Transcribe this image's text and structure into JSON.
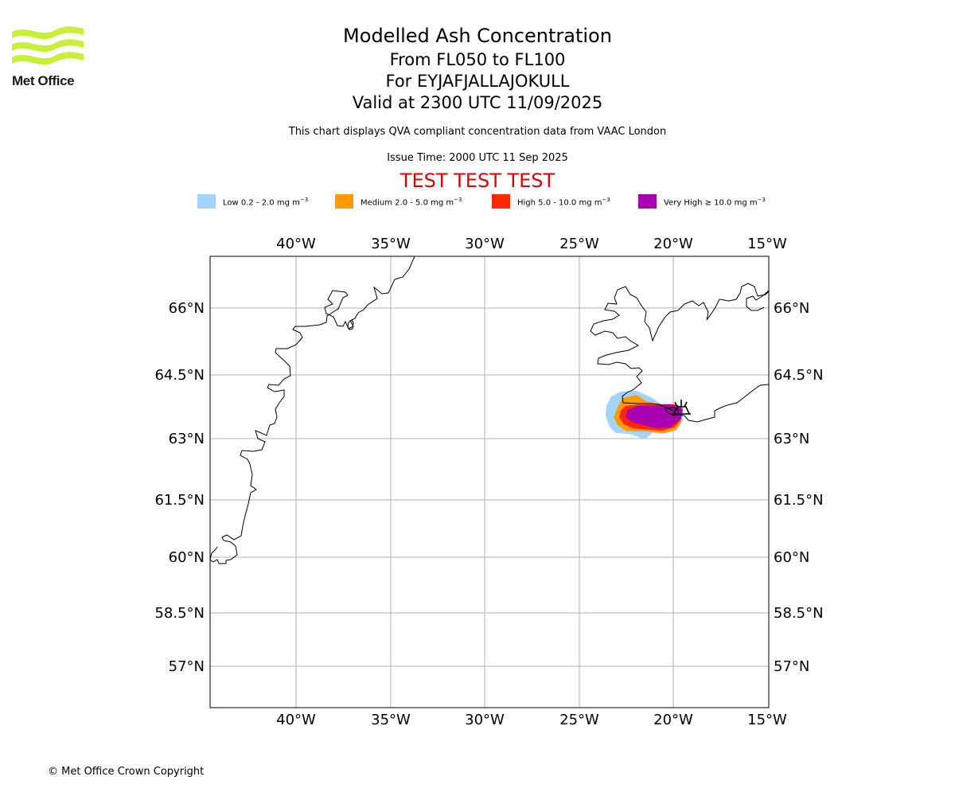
{
  "logo": {
    "text": "Met Office",
    "color": "#c8f03a"
  },
  "title": {
    "line1": "Modelled Ash Concentration",
    "line2": "From FL050 to FL100",
    "line3": "For EYJAFJALLAJOKULL",
    "line4": "Valid at 2300 UTC 11/09/2025"
  },
  "subtitle": "This chart displays QVA compliant concentration data from VAAC London",
  "issue_time": "Issue Time: 2000 UTC 11 Sep 2025",
  "test_banner": "TEST TEST TEST",
  "legend": [
    {
      "label": "Low 0.2 - 2.0 mg m",
      "color": "#a3d4fb"
    },
    {
      "label": "Medium 2.0 - 5.0 mg m",
      "color": "#ff9a00"
    },
    {
      "label": "High 5.0 - 10.0 mg m",
      "color": "#ff2800"
    },
    {
      "label": "Very High ≥ 10.0 mg m",
      "color": "#aa00b0"
    }
  ],
  "legend_unit_exponent": "−3",
  "map": {
    "lon_ticks": [
      "40°W",
      "35°W",
      "30°W",
      "25°W",
      "20°W",
      "15°W"
    ],
    "lat_ticks": [
      "66°N",
      "64.5°N",
      "63°N",
      "61.5°N",
      "60°N",
      "58.5°N",
      "57°N"
    ],
    "volcano_symbol": "volcano-marker"
  },
  "copyright": "© Met Office Crown Copyright"
}
